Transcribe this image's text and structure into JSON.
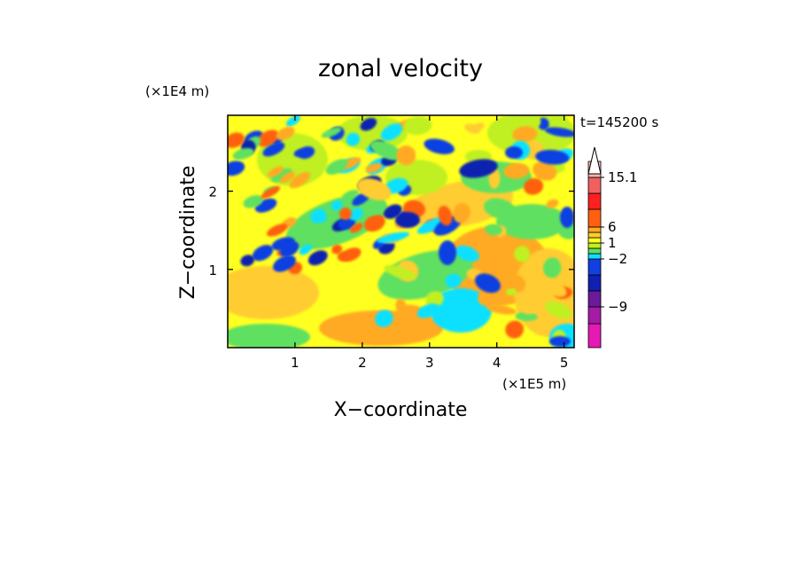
{
  "chart_data": {
    "type": "heatmap",
    "title": "zonal velocity",
    "xlabel": "X−coordinate",
    "ylabel": "Z−coordinate",
    "x_scale_label": "(×1E5 m)",
    "y_scale_label": "(×1E4 m)",
    "time_label": "t=145200 s",
    "xlim": [
      0,
      5.15
    ],
    "ylim": [
      0,
      2.97
    ],
    "x_ticks": [
      1,
      2,
      3,
      4,
      5
    ],
    "y_ticks": [
      1,
      2
    ],
    "colorbar": {
      "colors": [
        "#e619b4",
        "#a61aa6",
        "#6a1a9a",
        "#1020b0",
        "#1040e0",
        "#10e0ff",
        "#60e060",
        "#c0f020",
        "#ffff20",
        "#ffcc30",
        "#ffaa20",
        "#ff6010",
        "#ff2020",
        "#f06060",
        "#f8b0b0"
      ],
      "tick_labels": [
        {
          "level": 15.1,
          "label": "15.1"
        },
        {
          "level": 6,
          "label": "6"
        },
        {
          "level": 1,
          "label": "1"
        },
        {
          "level": -2,
          "label": "−2"
        },
        {
          "level": -9,
          "label": "−9"
        }
      ]
    }
  }
}
